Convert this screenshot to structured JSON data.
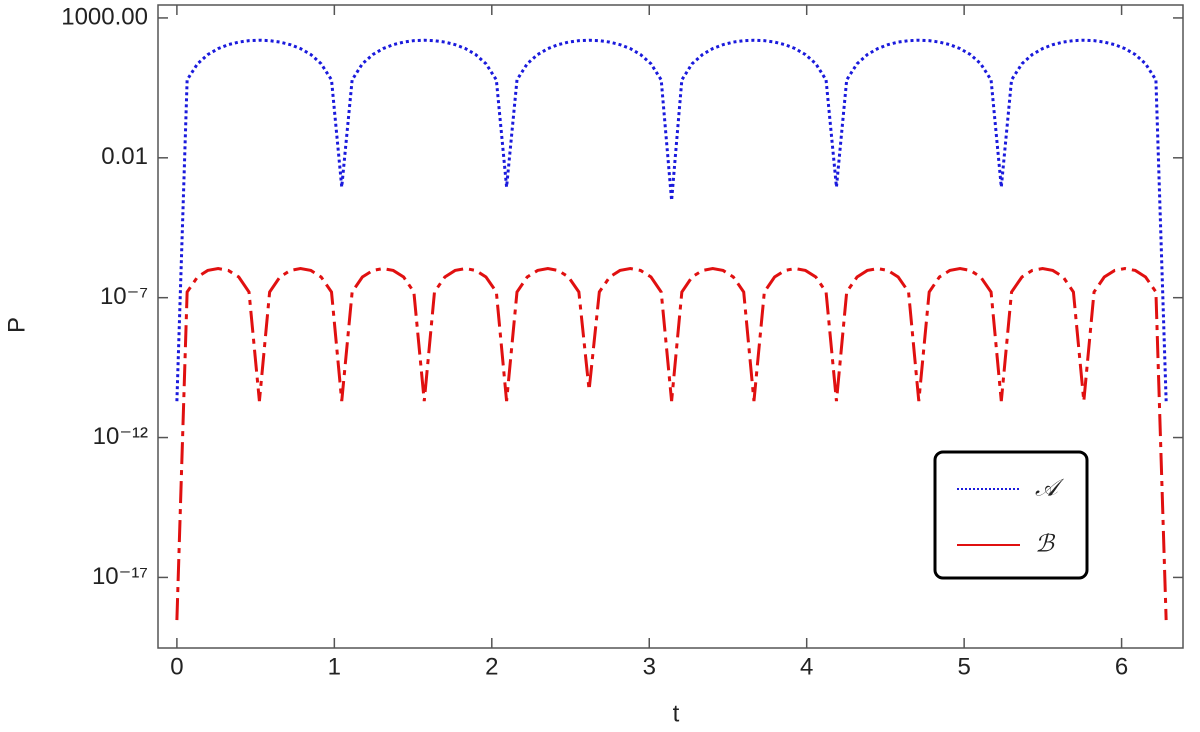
{
  "chart_data": {
    "type": "line",
    "xlabel": "t",
    "ylabel": "P",
    "log_y": true,
    "legend": "lower right",
    "xlim": [
      -0.12,
      6.39
    ],
    "ylim": [
      3e-20,
      2900
    ],
    "xticks": [
      0,
      1,
      2,
      3,
      4,
      5,
      6
    ],
    "yticks": [
      {
        "value": 1000,
        "label": "1000.00"
      },
      0.01,
      {
        "value": 1e-07,
        "label": "10⁻⁷"
      },
      {
        "value": 1e-12,
        "label": "10⁻¹²"
      },
      {
        "value": 1e-17,
        "label": "10⁻¹⁷"
      }
    ],
    "x": [
      0,
      0.065,
      0.131,
      0.196,
      0.262,
      0.327,
      0.393,
      0.458,
      0.524,
      0.589,
      0.654,
      0.72,
      0.785,
      0.851,
      0.916,
      0.982,
      1.047,
      1.113,
      1.178,
      1.244,
      1.309,
      1.374,
      1.44,
      1.505,
      1.571,
      1.636,
      1.702,
      1.767,
      1.833,
      1.898,
      1.963,
      2.029,
      2.094,
      2.16,
      2.225,
      2.291,
      2.356,
      2.422,
      2.487,
      2.553,
      2.618,
      2.683,
      2.749,
      2.814,
      2.88,
      2.945,
      3.011,
      3.076,
      3.142,
      3.207,
      3.272,
      3.338,
      3.403,
      3.469,
      3.534,
      3.6,
      3.665,
      3.731,
      3.796,
      3.862,
      3.927,
      3.992,
      4.058,
      4.123,
      4.189,
      4.254,
      4.32,
      4.385,
      4.451,
      4.516,
      4.581,
      4.647,
      4.712,
      4.778,
      4.843,
      4.909,
      4.974,
      5.04,
      5.105,
      5.171,
      5.236,
      5.301,
      5.367,
      5.432,
      5.498,
      5.563,
      5.629,
      5.694,
      5.76,
      5.825,
      5.89,
      5.956,
      6.021,
      6.087,
      6.152,
      6.218,
      6.283
    ],
    "series": [
      {
        "name": "𝒜",
        "color": "#1a1adc",
        "dash": "dotted",
        "values": [
          2e-11,
          6.1,
          23,
          49,
          80,
          111,
          137,
          154,
          160,
          154,
          137,
          111,
          80,
          49,
          23,
          6.1,
          0.0009,
          6.1,
          23,
          49,
          80,
          111,
          137,
          154,
          160,
          154,
          137,
          111,
          80,
          49,
          23,
          6.1,
          0.0009,
          6.1,
          23,
          49,
          80,
          111,
          137,
          154,
          160,
          154,
          137,
          111,
          80,
          49,
          23,
          6.1,
          0.0003,
          6.1,
          23,
          49,
          80,
          111,
          137,
          154,
          160,
          154,
          137,
          111,
          80,
          49,
          23,
          6.1,
          0.0009,
          6.1,
          23,
          49,
          80,
          111,
          137,
          154,
          160,
          154,
          137,
          111,
          80,
          49,
          23,
          6.1,
          0.0009,
          6.1,
          23,
          49,
          80,
          111,
          137,
          154,
          160,
          154,
          137,
          111,
          80,
          49,
          23,
          6.1,
          2e-11
        ]
      },
      {
        "name": "ℬ",
        "color": "#e01010",
        "dash": "dashdot",
        "values": [
          3e-19,
          1.6e-07,
          5.5e-07,
          9.4e-07,
          1.1e-06,
          9.4e-07,
          5.5e-07,
          1.6e-07,
          2e-11,
          1.6e-07,
          5.5e-07,
          9.4e-07,
          1.1e-06,
          9.4e-07,
          5.5e-07,
          1.6e-07,
          2e-11,
          1.6e-07,
          5.5e-07,
          9.4e-07,
          1.1e-06,
          9.4e-07,
          5.5e-07,
          1.6e-07,
          2e-11,
          1.6e-07,
          5.5e-07,
          9.4e-07,
          1.1e-06,
          9.4e-07,
          5.5e-07,
          1.6e-07,
          2e-11,
          1.6e-07,
          5.5e-07,
          9.4e-07,
          1.1e-06,
          9.4e-07,
          5.5e-07,
          1.6e-07,
          5e-11,
          1.6e-07,
          5.5e-07,
          9.4e-07,
          1.1e-06,
          9.4e-07,
          5.5e-07,
          1.6e-07,
          2e-11,
          1.6e-07,
          5.5e-07,
          9.4e-07,
          1.1e-06,
          9.4e-07,
          5.5e-07,
          1.6e-07,
          2e-11,
          1.6e-07,
          5.5e-07,
          9.4e-07,
          1.1e-06,
          9.4e-07,
          5.5e-07,
          1.6e-07,
          2e-11,
          1.6e-07,
          5.5e-07,
          9.4e-07,
          1.1e-06,
          9.4e-07,
          5.5e-07,
          1.6e-07,
          2e-11,
          1.6e-07,
          5.5e-07,
          9.4e-07,
          1.1e-06,
          9.4e-07,
          5.5e-07,
          1.6e-07,
          2e-11,
          1.6e-07,
          5.5e-07,
          9.4e-07,
          1.1e-06,
          9.4e-07,
          5.5e-07,
          1.6e-07,
          2e-11,
          1.6e-07,
          5.5e-07,
          9.4e-07,
          1.1e-06,
          9.4e-07,
          5.5e-07,
          1.6e-07,
          3e-19
        ]
      }
    ]
  }
}
